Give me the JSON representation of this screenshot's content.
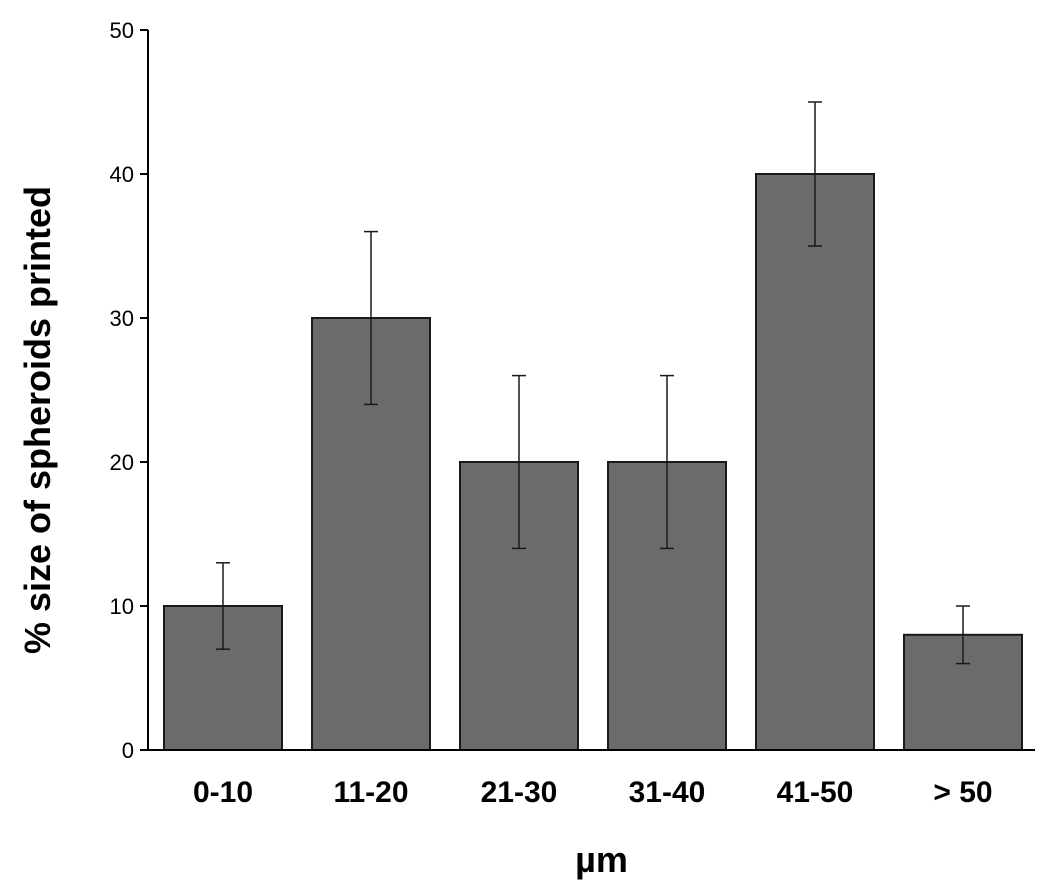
{
  "chart_data": {
    "type": "bar",
    "title": "",
    "xlabel": "µm",
    "ylabel": "% size of spheroids printed",
    "categories": [
      "0-10",
      "11-20",
      "21-30",
      "31-40",
      "41-50",
      "> 50"
    ],
    "series": [
      {
        "values": [
          10,
          30,
          20,
          20,
          40,
          8
        ],
        "error_low": [
          7,
          24,
          14,
          14,
          35,
          6
        ],
        "error_high": [
          13,
          36,
          26,
          26,
          45,
          10
        ]
      }
    ],
    "ylim": [
      0,
      50
    ],
    "yticks": [
      0,
      10,
      20,
      30,
      40,
      50
    ],
    "grid": false,
    "legend": "none",
    "colors": {
      "bar_fill": "#6b6b6b",
      "bar_stroke": "#1a1a1a",
      "axis": "#000000",
      "error_bar": "#1a1a1a"
    }
  }
}
